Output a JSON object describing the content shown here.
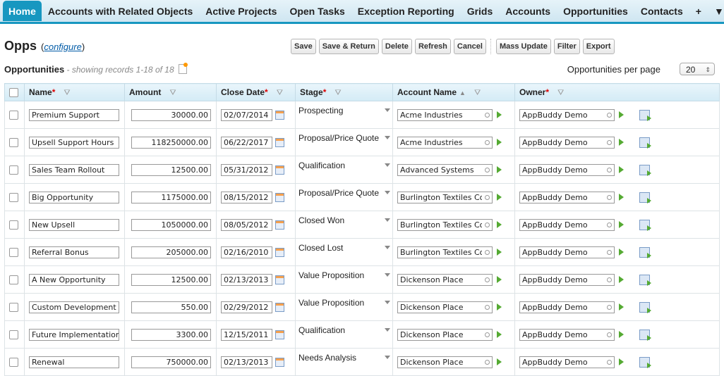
{
  "tabs": [
    "Home",
    "Accounts with Related Objects",
    "Active Projects",
    "Open Tasks",
    "Exception Reporting",
    "Grids",
    "Accounts",
    "Opportunities",
    "Contacts",
    "+",
    "▼"
  ],
  "page": {
    "title": "Opps",
    "configure_open": "(",
    "configure_link": "configure",
    "configure_close": ")"
  },
  "toolbar": {
    "save": "Save",
    "save_return": "Save & Return",
    "delete": "Delete",
    "refresh": "Refresh",
    "cancel": "Cancel",
    "mass_update": "Mass Update",
    "filter": "Filter",
    "export": "Export"
  },
  "grid": {
    "title": "Opportunities",
    "subtitle": " - showing records 1-18 of 18",
    "per_page_label": "Opportunities per page",
    "per_page_value": "20"
  },
  "columns": [
    "Name",
    "Amount",
    "Close Date",
    "Stage",
    "Account Name",
    "Owner"
  ],
  "rows": [
    {
      "name": "Premium Support",
      "amount": "30000.00",
      "date": "02/07/2014",
      "stage": "Prospecting",
      "account": "Acme Industries",
      "owner": "AppBuddy Demo"
    },
    {
      "name": "Upsell Support Hours",
      "amount": "118250000.00",
      "date": "06/22/2017",
      "stage": "Proposal/Price Quote",
      "account": "Acme Industries",
      "owner": "AppBuddy Demo"
    },
    {
      "name": "Sales Team Rollout",
      "amount": "12500.00",
      "date": "05/31/2012",
      "stage": "Qualification",
      "account": "Advanced Systems",
      "owner": "AppBuddy Demo"
    },
    {
      "name": "Big Opportunity",
      "amount": "1175000.00",
      "date": "08/15/2012",
      "stage": "Proposal/Price Quote",
      "account": "Burlington Textiles Co",
      "owner": "AppBuddy Demo"
    },
    {
      "name": "New Upsell",
      "amount": "1050000.00",
      "date": "08/05/2012",
      "stage": "Closed Won",
      "account": "Burlington Textiles Co",
      "owner": "AppBuddy Demo"
    },
    {
      "name": "Referral Bonus",
      "amount": "205000.00",
      "date": "02/16/2010",
      "stage": "Closed Lost",
      "account": "Burlington Textiles Co",
      "owner": "AppBuddy Demo"
    },
    {
      "name": "A New Opportunity",
      "amount": "12500.00",
      "date": "02/13/2013",
      "stage": "Value Proposition",
      "account": "Dickenson Place",
      "owner": "AppBuddy Demo"
    },
    {
      "name": "Custom Development",
      "amount": "550.00",
      "date": "02/29/2012",
      "stage": "Value Proposition",
      "account": "Dickenson Place",
      "owner": "AppBuddy Demo"
    },
    {
      "name": "Future Implementation",
      "amount": "3300.00",
      "date": "12/15/2011",
      "stage": "Qualification",
      "account": "Dickenson Place",
      "owner": "AppBuddy Demo"
    },
    {
      "name": "Renewal",
      "amount": "750000.00",
      "date": "02/13/2013",
      "stage": "Needs Analysis",
      "account": "Dickenson Place",
      "owner": "AppBuddy Demo"
    }
  ]
}
